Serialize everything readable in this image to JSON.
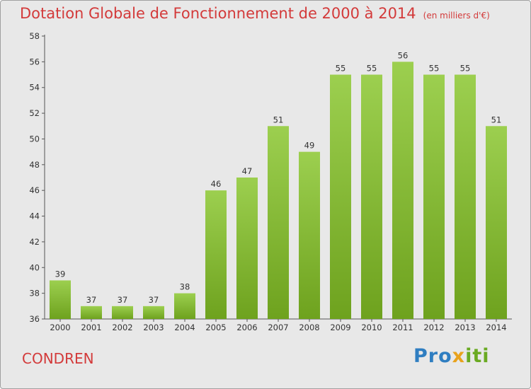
{
  "title": "Dotation Globale de Fonctionnement de 2000 à 2014",
  "unit": "(en milliers d'€)",
  "commune": "CONDREN",
  "logo": {
    "p1": "Pro",
    "p2": "x",
    "p3": "iti"
  },
  "colors": {
    "bar_light": "#9ccf4f",
    "bar_dark": "#6ea21e",
    "title": "#d33a3a"
  },
  "chart_data": {
    "type": "bar",
    "categories": [
      "2000",
      "2001",
      "2002",
      "2003",
      "2004",
      "2005",
      "2006",
      "2007",
      "2008",
      "2009",
      "2010",
      "2011",
      "2012",
      "2013",
      "2014"
    ],
    "values": [
      39,
      37,
      37,
      37,
      38,
      46,
      47,
      51,
      49,
      55,
      55,
      56,
      55,
      55,
      51
    ],
    "ylim": [
      36,
      58
    ],
    "yticks": [
      36,
      38,
      40,
      42,
      44,
      46,
      48,
      50,
      52,
      54,
      56,
      58
    ],
    "grid": false
  }
}
